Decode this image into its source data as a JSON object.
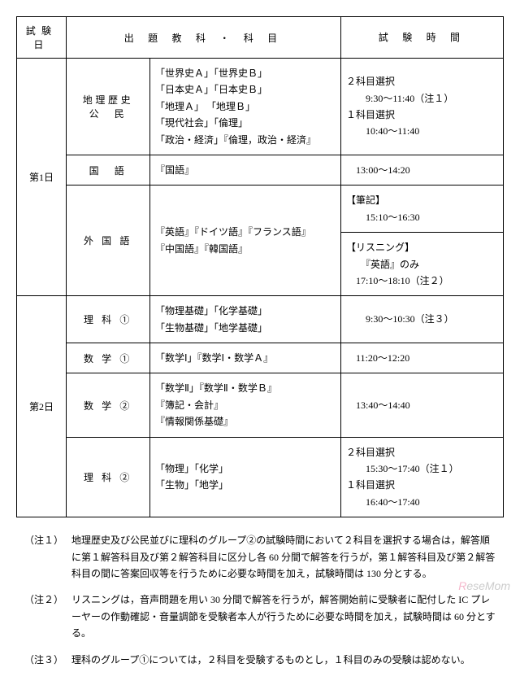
{
  "table": {
    "headers": {
      "day": "試験日",
      "subject": "出 題 教 科 ・ 科 目",
      "time": "試 験 時 間"
    },
    "rows": [
      {
        "day": "第1日",
        "subj": "地理歴史\n公　民",
        "items": "「世界史Ａ」「世界史Ｂ」\n「日本史Ａ」「日本史Ｂ」\n「地理Ａ」 「地理Ｂ」\n「現代社会」「倫理」\n「政治・経済」『倫理，政治・経済』",
        "time": "２科目選択\n　　9:30～11:40（注１）\n１科目選択\n　　10:40～11:40"
      },
      {
        "subj": "国　語",
        "items": "『国語』",
        "time": "13:00～14:20"
      },
      {
        "subj": "外 国 語",
        "items": "『英語』『ドイツ語』『フランス語』\n『中国語』『韓国語』",
        "time_split": {
          "top": "【筆記】\n　　15:10～16:30",
          "bottom": "【リスニング】\n　　『英語』のみ\n　17:10～18:10（注２）"
        }
      },
      {
        "day": "第2日",
        "subj": "理 科 ①",
        "items": "「物理基礎」「化学基礎」\n「生物基礎」「地学基礎」",
        "time": "　9:30～10:30（注３）"
      },
      {
        "subj": "数 学 ①",
        "items": "「数学Ⅰ」『数学Ⅰ・数学Ａ』",
        "time": "11:20～12:20"
      },
      {
        "subj": "数 学 ②",
        "items": "「数学Ⅱ」『数学Ⅱ・数学Ｂ』\n『簿記・会計』\n『情報関係基礎』",
        "time": "13:40～14:40"
      },
      {
        "subj": "理 科 ②",
        "items": "「物理」「化学」\n「生物」「地学」",
        "time": "２科目選択\n　　15:30～17:40（注１）\n１科目選択\n　　16:40～17:40"
      }
    ]
  },
  "notes": [
    {
      "label": "（注１）",
      "text": "地理歴史及び公民並びに理科のグループ②の試験時間において２科目を選択する場合は，解答順に第１解答科目及び第２解答科目に区分し各 60 分間で解答を行うが，第１解答科目及び第２解答科目の間に答案回収等を行うために必要な時間を加え，試験時間は 130 分とする。"
    },
    {
      "label": "（注２）",
      "text": "リスニングは，音声問題を用い 30 分間で解答を行うが，解答開始前に受験者に配付した IC プレーヤーの作動確認・音量調節を受験者本人が行うために必要な時間を加え，試験時間は 60 分とする。"
    },
    {
      "label": "（注３）",
      "text": "理科のグループ①については，２科目を受験するものとし，１科目のみの受験は認めない。"
    }
  ],
  "watermark": {
    "r": "R",
    "rest": "eseMom"
  }
}
